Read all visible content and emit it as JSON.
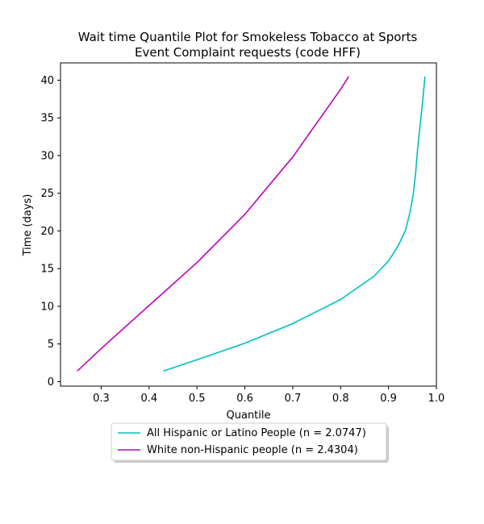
{
  "chart_data": {
    "type": "line",
    "title_lines": [
      "Wait time Quantile Plot for Smokeless Tobacco at Sports",
      "Event Complaint  requests (code HFF)"
    ],
    "xlabel": "Quantile",
    "ylabel": "Time (days)",
    "xlim": [
      0.215,
      1.0
    ],
    "ylim": [
      -0.6,
      42.3
    ],
    "xticks": [
      0.3,
      0.4,
      0.5,
      0.6,
      0.7,
      0.8,
      0.9,
      1.0
    ],
    "xtick_labels": [
      "0.3",
      "0.4",
      "0.5",
      "0.6",
      "0.7",
      "0.8",
      "0.9",
      "1.0"
    ],
    "yticks": [
      0,
      5,
      10,
      15,
      20,
      25,
      30,
      35,
      40
    ],
    "ytick_labels": [
      "0",
      "5",
      "10",
      "15",
      "20",
      "25",
      "30",
      "35",
      "40"
    ],
    "grid": false,
    "legend_position": "bottom-center below plot",
    "series": [
      {
        "name": "All Hispanic or Latino People (n = 2.0747)",
        "color": "#00bfbf",
        "points": [
          [
            0.43,
            1.4
          ],
          [
            0.5,
            2.9
          ],
          [
            0.6,
            5.1
          ],
          [
            0.7,
            7.7
          ],
          [
            0.8,
            10.9
          ],
          [
            0.87,
            14.0
          ],
          [
            0.9,
            16.0
          ],
          [
            0.92,
            18.0
          ],
          [
            0.935,
            20.0
          ],
          [
            0.945,
            22.5
          ],
          [
            0.952,
            25.0
          ],
          [
            0.957,
            28.0
          ],
          [
            0.961,
            31.0
          ],
          [
            0.966,
            34.0
          ],
          [
            0.971,
            37.0
          ],
          [
            0.976,
            40.5
          ]
        ]
      },
      {
        "name": "White non-Hispanic people (n = 2.4304)",
        "color": "#bf00bf",
        "points": [
          [
            0.25,
            1.4
          ],
          [
            0.3,
            4.4
          ],
          [
            0.4,
            10.1
          ],
          [
            0.5,
            15.8
          ],
          [
            0.6,
            22.2
          ],
          [
            0.7,
            29.8
          ],
          [
            0.8,
            38.8
          ],
          [
            0.817,
            40.5
          ]
        ]
      }
    ]
  }
}
